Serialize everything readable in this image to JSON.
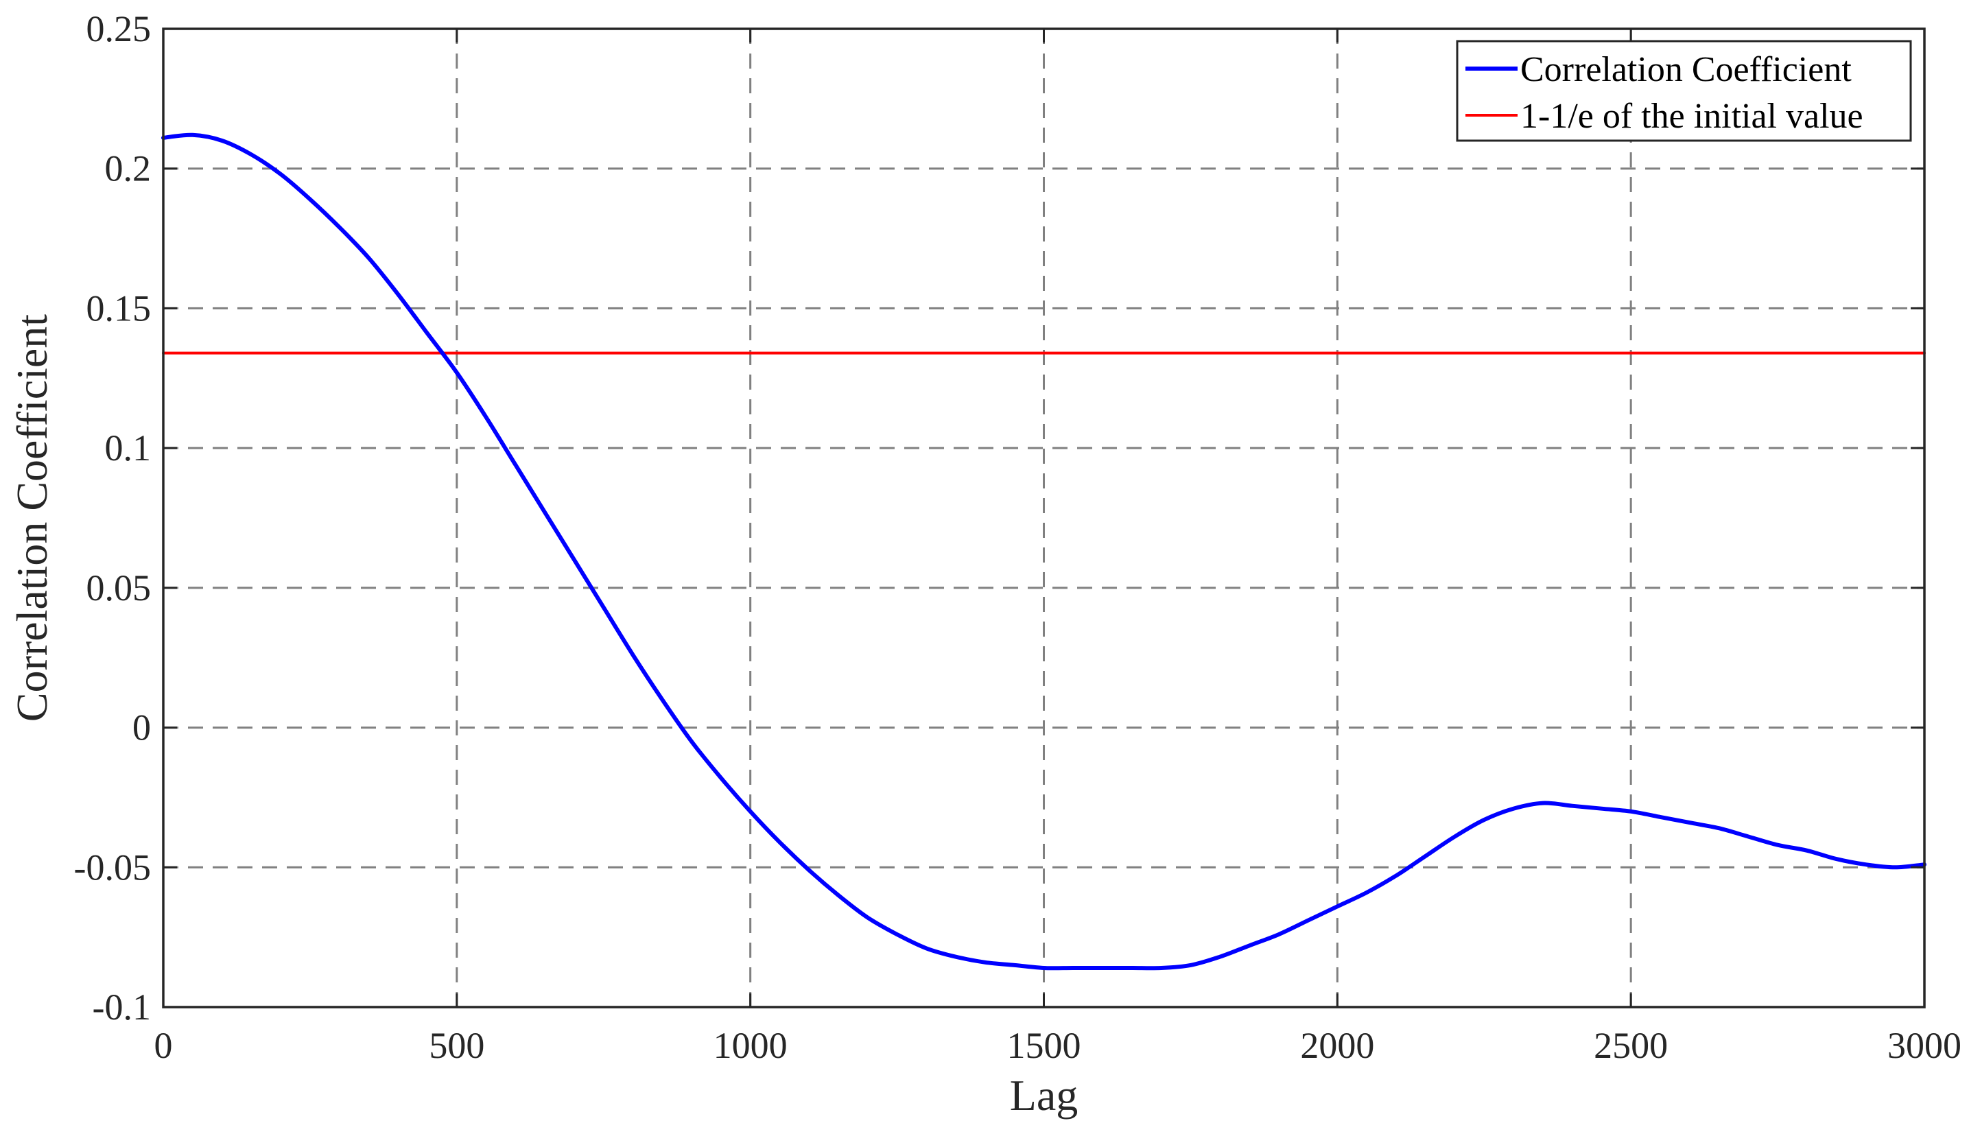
{
  "chart_data": {
    "type": "line",
    "title": "",
    "xlabel": "Lag",
    "ylabel": "Correlation Coefficient",
    "xlim": [
      0,
      3000
    ],
    "ylim": [
      -0.1,
      0.25
    ],
    "x_ticks": [
      "0",
      "500",
      "1000",
      "1500",
      "2000",
      "2500",
      "3000"
    ],
    "y_ticks": [
      "-0.1",
      "-0.05",
      "0",
      "0.05",
      "0.1",
      "0.15",
      "0.2",
      "0.25"
    ],
    "grid": true,
    "legend_position": "top-right",
    "colors": {
      "correlation": "#0000ff",
      "threshold": "#ff0000"
    },
    "series": [
      {
        "name": "Correlation Coefficient",
        "x": [
          0,
          50,
          100,
          150,
          200,
          250,
          300,
          350,
          400,
          450,
          500,
          550,
          600,
          650,
          700,
          750,
          800,
          850,
          900,
          950,
          1000,
          1050,
          1100,
          1150,
          1200,
          1250,
          1300,
          1350,
          1400,
          1450,
          1500,
          1550,
          1600,
          1650,
          1700,
          1750,
          1800,
          1850,
          1900,
          1950,
          2000,
          2050,
          2100,
          2150,
          2200,
          2250,
          2300,
          2350,
          2400,
          2450,
          2500,
          2550,
          2600,
          2650,
          2700,
          2750,
          2800,
          2850,
          2900,
          2950,
          3000
        ],
        "y": [
          0.211,
          0.212,
          0.21,
          0.205,
          0.198,
          0.189,
          0.179,
          0.168,
          0.155,
          0.141,
          0.127,
          0.111,
          0.094,
          0.077,
          0.06,
          0.043,
          0.026,
          0.01,
          -0.005,
          -0.018,
          -0.03,
          -0.041,
          -0.051,
          -0.06,
          -0.068,
          -0.074,
          -0.079,
          -0.082,
          -0.084,
          -0.085,
          -0.086,
          -0.086,
          -0.086,
          -0.086,
          -0.086,
          -0.085,
          -0.082,
          -0.078,
          -0.074,
          -0.069,
          -0.064,
          -0.059,
          -0.053,
          -0.046,
          -0.039,
          -0.033,
          -0.029,
          -0.027,
          -0.028,
          -0.029,
          -0.03,
          -0.032,
          -0.034,
          -0.036,
          -0.039,
          -0.042,
          -0.044,
          -0.047,
          -0.049,
          -0.05,
          -0.049
        ]
      },
      {
        "name": "1-1/e of the initial value",
        "x": [
          0,
          3000
        ],
        "y": [
          0.134,
          0.134
        ]
      }
    ]
  }
}
